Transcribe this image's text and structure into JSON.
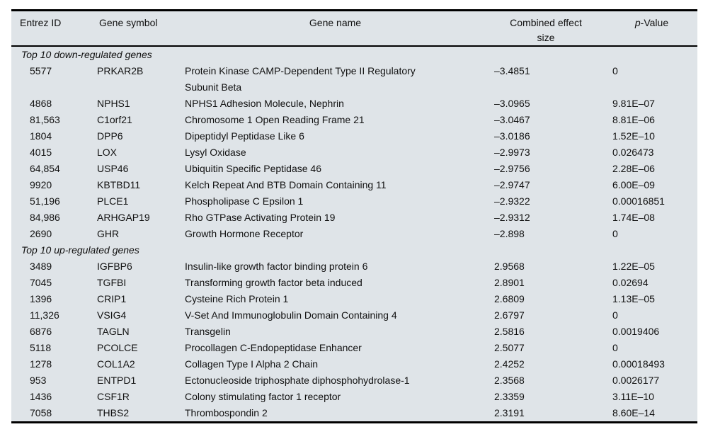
{
  "table": {
    "headers": [
      {
        "label": "Entrez ID"
      },
      {
        "label": "Gene symbol"
      },
      {
        "label": "Gene name"
      },
      {
        "label": "Combined effect size"
      },
      {
        "label": "p-Value",
        "italic_prefix": "p",
        "suffix": "-Value"
      }
    ],
    "columns_keys": [
      "entrez_id",
      "gene_symbol",
      "gene_name",
      "effect_size",
      "p_value"
    ],
    "sections": [
      {
        "title": "Top 10 down-regulated genes",
        "rows": [
          {
            "entrez_id": "5577",
            "gene_symbol": "PRKAR2B",
            "gene_name": "Protein Kinase CAMP-Dependent Type II Regulatory Subunit Beta",
            "effect_size": "–3.4851",
            "p_value": "0"
          },
          {
            "entrez_id": "4868",
            "gene_symbol": "NPHS1",
            "gene_name": "NPHS1 Adhesion Molecule, Nephrin",
            "effect_size": "–3.0965",
            "p_value": "9.81E–07"
          },
          {
            "entrez_id": "81,563",
            "gene_symbol": "C1orf21",
            "gene_name": "Chromosome 1 Open Reading Frame 21",
            "effect_size": "–3.0467",
            "p_value": "8.81E–06"
          },
          {
            "entrez_id": "1804",
            "gene_symbol": "DPP6",
            "gene_name": "Dipeptidyl Peptidase Like 6",
            "effect_size": "–3.0186",
            "p_value": "1.52E–10"
          },
          {
            "entrez_id": "4015",
            "gene_symbol": "LOX",
            "gene_name": "Lysyl Oxidase",
            "effect_size": "–2.9973",
            "p_value": "0.026473"
          },
          {
            "entrez_id": "64,854",
            "gene_symbol": "USP46",
            "gene_name": "Ubiquitin Specific Peptidase 46",
            "effect_size": "–2.9756",
            "p_value": "2.28E–06"
          },
          {
            "entrez_id": "9920",
            "gene_symbol": "KBTBD11",
            "gene_name": "Kelch Repeat And BTB Domain Containing 11",
            "effect_size": "–2.9747",
            "p_value": "6.00E–09"
          },
          {
            "entrez_id": "51,196",
            "gene_symbol": "PLCE1",
            "gene_name": "Phospholipase C Epsilon 1",
            "effect_size": "–2.9322",
            "p_value": "0.00016851"
          },
          {
            "entrez_id": "84,986",
            "gene_symbol": "ARHGAP19",
            "gene_name": "Rho GTPase Activating Protein 19",
            "effect_size": "–2.9312",
            "p_value": "1.74E–08"
          },
          {
            "entrez_id": "2690",
            "gene_symbol": "GHR",
            "gene_name": "Growth Hormone Receptor",
            "effect_size": "–2.898",
            "p_value": "0"
          }
        ]
      },
      {
        "title": "Top 10 up-regulated genes",
        "rows": [
          {
            "entrez_id": "3489",
            "gene_symbol": "IGFBP6",
            "gene_name": "Insulin-like growth factor binding protein 6",
            "effect_size": "2.9568",
            "p_value": "1.22E–05"
          },
          {
            "entrez_id": "7045",
            "gene_symbol": "TGFBI",
            "gene_name": "Transforming growth factor beta induced",
            "effect_size": "2.8901",
            "p_value": "0.02694"
          },
          {
            "entrez_id": "1396",
            "gene_symbol": "CRIP1",
            "gene_name": "Cysteine Rich Protein 1",
            "effect_size": "2.6809",
            "p_value": "1.13E–05"
          },
          {
            "entrez_id": "11,326",
            "gene_symbol": "VSIG4",
            "gene_name": "V-Set And Immunoglobulin Domain Containing 4",
            "effect_size": "2.6797",
            "p_value": "0"
          },
          {
            "entrez_id": "6876",
            "gene_symbol": "TAGLN",
            "gene_name": "Transgelin",
            "effect_size": "2.5816",
            "p_value": "0.0019406"
          },
          {
            "entrez_id": "5118",
            "gene_symbol": "PCOLCE",
            "gene_name": "Procollagen C-Endopeptidase Enhancer",
            "effect_size": "2.5077",
            "p_value": "0"
          },
          {
            "entrez_id": "1278",
            "gene_symbol": "COL1A2",
            "gene_name": "Collagen Type I Alpha 2 Chain",
            "effect_size": "2.4252",
            "p_value": "0.00018493"
          },
          {
            "entrez_id": "953",
            "gene_symbol": "ENTPD1",
            "gene_name": "Ectonucleoside triphosphate diphosphohydrolase-1",
            "effect_size": "2.3568",
            "p_value": "0.0026177"
          },
          {
            "entrez_id": "1436",
            "gene_symbol": "CSF1R",
            "gene_name": "Colony stimulating factor 1 receptor",
            "effect_size": "2.3359",
            "p_value": "3.11E–10"
          },
          {
            "entrez_id": "7058",
            "gene_symbol": "THBS2",
            "gene_name": "Thrombospondin 2",
            "effect_size": "2.3191",
            "p_value": "8.60E–14"
          }
        ]
      }
    ],
    "colors": {
      "table_background": "#dfe4e8",
      "rule_color": "#000000",
      "text_color": "#111111"
    }
  }
}
